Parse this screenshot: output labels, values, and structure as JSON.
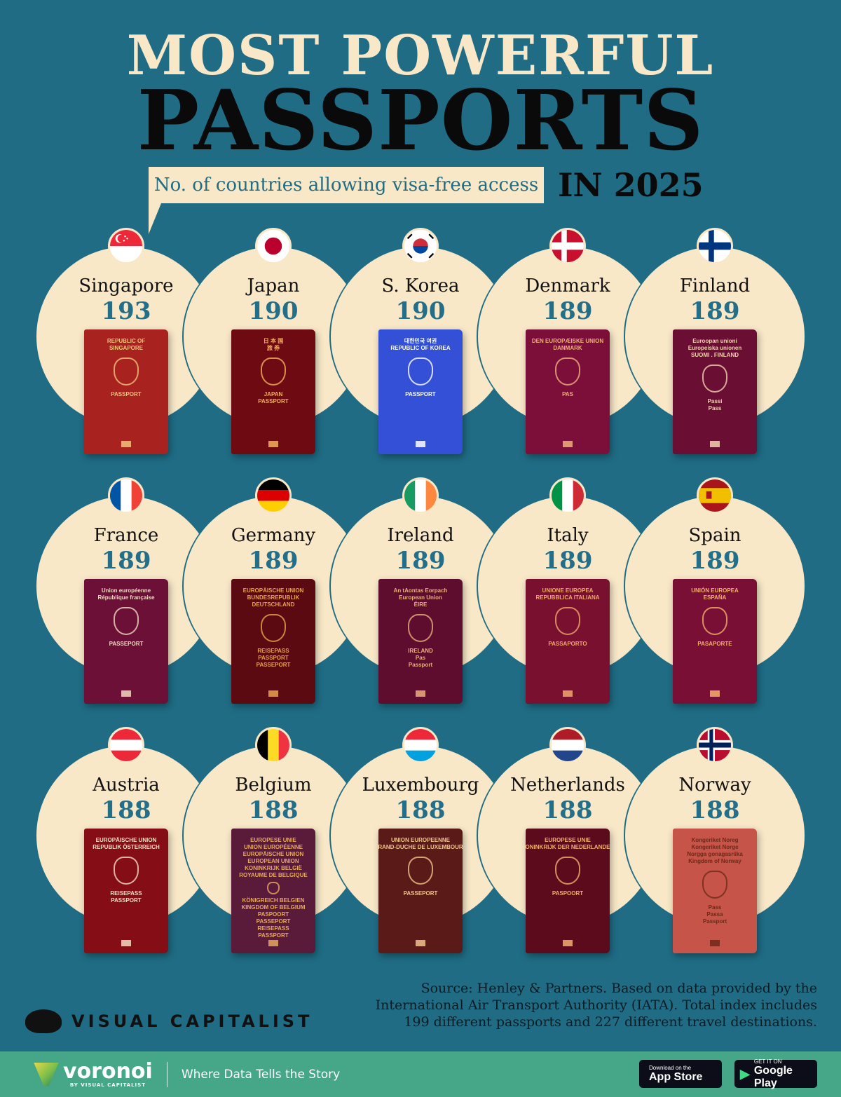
{
  "header": {
    "title_line1": "MOST POWERFUL",
    "title_line2": "PASSPORTS",
    "subtitle": "No. of countries allowing visa-free access",
    "year": "IN 2025"
  },
  "countries": [
    {
      "name": "Singapore",
      "value": "193",
      "flag": {
        "type": "singapore",
        "colors": [
          "#ed2939",
          "#ffffff"
        ]
      },
      "passport": {
        "color": "#a8231f",
        "text_color": "#f0c27a",
        "lines": [
          "REPUBLIC OF",
          "SINGAPORE",
          "PASSPORT"
        ]
      }
    },
    {
      "name": "Japan",
      "value": "190",
      "flag": {
        "type": "japan",
        "colors": [
          "#ffffff",
          "#bc002d"
        ]
      },
      "passport": {
        "color": "#6e0b12",
        "text_color": "#f4b15a",
        "lines": [
          "日 本 国",
          "旅 券",
          "JAPAN",
          "PASSPORT"
        ]
      }
    },
    {
      "name": "S. Korea",
      "value": "190",
      "flag": {
        "type": "korea",
        "colors": [
          "#ffffff",
          "#cd2e3a",
          "#0047a0",
          "#000000"
        ]
      },
      "passport": {
        "color": "#3350d6",
        "text_color": "#ffffff",
        "lines": [
          "대한민국 여권",
          "REPUBLIC OF KOREA",
          "PASSPORT"
        ]
      }
    },
    {
      "name": "Denmark",
      "value": "189",
      "flag": {
        "type": "nordic",
        "colors": [
          "#c8102e",
          "#ffffff"
        ]
      },
      "passport": {
        "color": "#7c0f3a",
        "text_color": "#f0b07a",
        "lines": [
          "DEN EUROPÆISKE UNION",
          "DANMARK",
          "PAS"
        ]
      }
    },
    {
      "name": "Finland",
      "value": "189",
      "flag": {
        "type": "nordic",
        "colors": [
          "#ffffff",
          "#003580"
        ]
      },
      "passport": {
        "color": "#6a0f33",
        "text_color": "#f3d0b0",
        "lines": [
          "Euroopan unioni",
          "Europeiska unionen",
          "SUOMI . FINLAND",
          "Passi",
          "Pass"
        ]
      }
    },
    {
      "name": "France",
      "value": "189",
      "flag": {
        "type": "vertical",
        "colors": [
          "#0055a4",
          "#ffffff",
          "#ef4135"
        ]
      },
      "passport": {
        "color": "#6c1037",
        "text_color": "#f3d8c0",
        "lines": [
          "Union européenne",
          "République française",
          "PASSEPORT"
        ]
      }
    },
    {
      "name": "Germany",
      "value": "189",
      "flag": {
        "type": "horizontal",
        "colors": [
          "#000000",
          "#dd0000",
          "#ffce00"
        ]
      },
      "passport": {
        "color": "#5a0a10",
        "text_color": "#e9a24a",
        "lines": [
          "EUROPÄISCHE UNION",
          "BUNDESREPUBLIK",
          "DEUTSCHLAND",
          "REISEPASS",
          "PASSPORT",
          "PASSEPORT"
        ]
      }
    },
    {
      "name": "Ireland",
      "value": "189",
      "flag": {
        "type": "vertical",
        "colors": [
          "#169b62",
          "#ffffff",
          "#ff883e"
        ]
      },
      "passport": {
        "color": "#5e0d2e",
        "text_color": "#e9b07a",
        "lines": [
          "An tAontas Eorpach",
          "European Union",
          "ÉIRE",
          "IRELAND",
          "Pas",
          "Passport"
        ]
      }
    },
    {
      "name": "Italy",
      "value": "189",
      "flag": {
        "type": "vertical",
        "colors": [
          "#009246",
          "#ffffff",
          "#ce2b37"
        ]
      },
      "passport": {
        "color": "#7a1030",
        "text_color": "#f0a86a",
        "lines": [
          "UNIONE EUROPEA",
          "REPUBBLICA ITALIANA",
          "PASSAPORTO"
        ]
      }
    },
    {
      "name": "Spain",
      "value": "189",
      "flag": {
        "type": "spain",
        "colors": [
          "#aa151b",
          "#f1bf00"
        ]
      },
      "passport": {
        "color": "#7a0f35",
        "text_color": "#f3b06a",
        "lines": [
          "UNIÓN EUROPEA",
          "ESPAÑA",
          "PASAPORTE"
        ]
      }
    },
    {
      "name": "Austria",
      "value": "188",
      "flag": {
        "type": "horizontal",
        "colors": [
          "#ed2939",
          "#ffffff",
          "#ed2939"
        ]
      },
      "passport": {
        "color": "#850d16",
        "text_color": "#f3dcc0",
        "lines": [
          "EUROPÄISCHE UNION",
          "REPUBLIK ÖSTERREICH",
          "REISEPASS",
          "PASSPORT"
        ]
      }
    },
    {
      "name": "Belgium",
      "value": "188",
      "flag": {
        "type": "vertical",
        "colors": [
          "#000000",
          "#fdda24",
          "#ef3340"
        ]
      },
      "passport": {
        "color": "#5a1a3a",
        "text_color": "#e6a860",
        "lines": [
          "EUROPESE UNIE",
          "UNION EUROPÉENNE",
          "EUROPÄISCHE UNION",
          "EUROPEAN UNION",
          "KONINKRIJK BELGIË",
          "ROYAUME DE BELGIQUE",
          "KÖNIGREICH BELGIEN",
          "KINGDOM OF BELGIUM",
          "PASPOORT",
          "PASSEPORT",
          "REISEPASS",
          "PASSPORT"
        ]
      }
    },
    {
      "name": "Luxembourg",
      "value": "188",
      "flag": {
        "type": "horizontal",
        "colors": [
          "#ed2939",
          "#ffffff",
          "#00a1de"
        ]
      },
      "passport": {
        "color": "#5a1a18",
        "text_color": "#f0c48a",
        "lines": [
          "UNION EUROPEENNE",
          "GRAND-DUCHE DE LUXEMBOURG",
          "PASSEPORT"
        ]
      }
    },
    {
      "name": "Netherlands",
      "value": "188",
      "flag": {
        "type": "horizontal",
        "colors": [
          "#ae1c28",
          "#ffffff",
          "#21468b"
        ]
      },
      "passport": {
        "color": "#5c0b1c",
        "text_color": "#f0b070",
        "lines": [
          "EUROPESE UNIE",
          "KONINKRIJK DER NEDERLANDEN",
          "PASPOORT"
        ]
      }
    },
    {
      "name": "Norway",
      "value": "188",
      "flag": {
        "type": "nordic",
        "colors": [
          "#ba0c2f",
          "#ffffff",
          "#00205b"
        ]
      },
      "passport": {
        "color": "#c65448",
        "text_color": "#6a2a1a",
        "lines": [
          "Kongeriket Noreg",
          "Kongeriket Norge",
          "Norgga gonagasriika",
          "Kingdom of Norway",
          "Pass",
          "Passa",
          "Passport"
        ]
      }
    }
  ],
  "source": "Source: Henley & Partners. Based on data provided by the International Air Transport Authority (IATA). Total index includes 199 different passports and 227 different travel destinations.",
  "brand": {
    "name": "VISUAL CAPITALIST"
  },
  "footer": {
    "voronoi": "voronoi",
    "voronoi_by": "BY VISUAL CAPITALIST",
    "tagline": "Where Data Tells the Story",
    "appstore_small": "Download on the",
    "appstore": "App Store",
    "gplay_small": "GET IT ON",
    "gplay": "Google Play",
    "bg": "#45a688"
  }
}
